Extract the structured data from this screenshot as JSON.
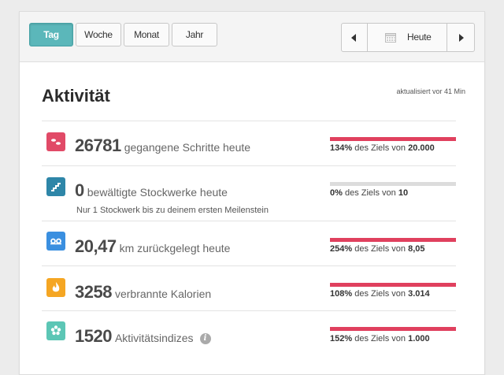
{
  "toolbar": {
    "periods": [
      "Tag",
      "Woche",
      "Monat",
      "Jahr"
    ],
    "active_period": "Tag",
    "date_label": "Heute",
    "accent_color": "#5bb7ba"
  },
  "header": {
    "title": "Aktivität",
    "updated": "aktualisiert vor 41 Min"
  },
  "goal_separator": "des Ziels von",
  "rows": [
    {
      "icon": "steps-icon",
      "color": "#e14a67",
      "value": "26781",
      "label": "gegangene Schritte heute",
      "percent": "134%",
      "goal": "20.000",
      "progress": 1.0
    },
    {
      "icon": "stairs-icon",
      "color": "#2e86a8",
      "value": "0",
      "label": "bewältigte Stockwerke heute",
      "note": "Nur 1 Stockwerk bis zu deinem ersten Meilenstein",
      "percent": "0%",
      "goal": "10",
      "progress": 0.0
    },
    {
      "icon": "distance-icon",
      "color": "#3a8fe0",
      "value": "20,47",
      "label": "km zurückgelegt heute",
      "percent": "254%",
      "goal": "8,05",
      "progress": 1.0
    },
    {
      "icon": "flame-icon",
      "color": "#f5a623",
      "value": "3258",
      "label": "verbrannte Kalorien",
      "percent": "108%",
      "goal": "3.014",
      "progress": 1.0
    },
    {
      "icon": "flower-icon",
      "color": "#5cc6b5",
      "value": "1520",
      "label": "Aktivitätsindizes",
      "percent": "152%",
      "goal": "1.000",
      "progress": 1.0,
      "info": "i"
    }
  ]
}
